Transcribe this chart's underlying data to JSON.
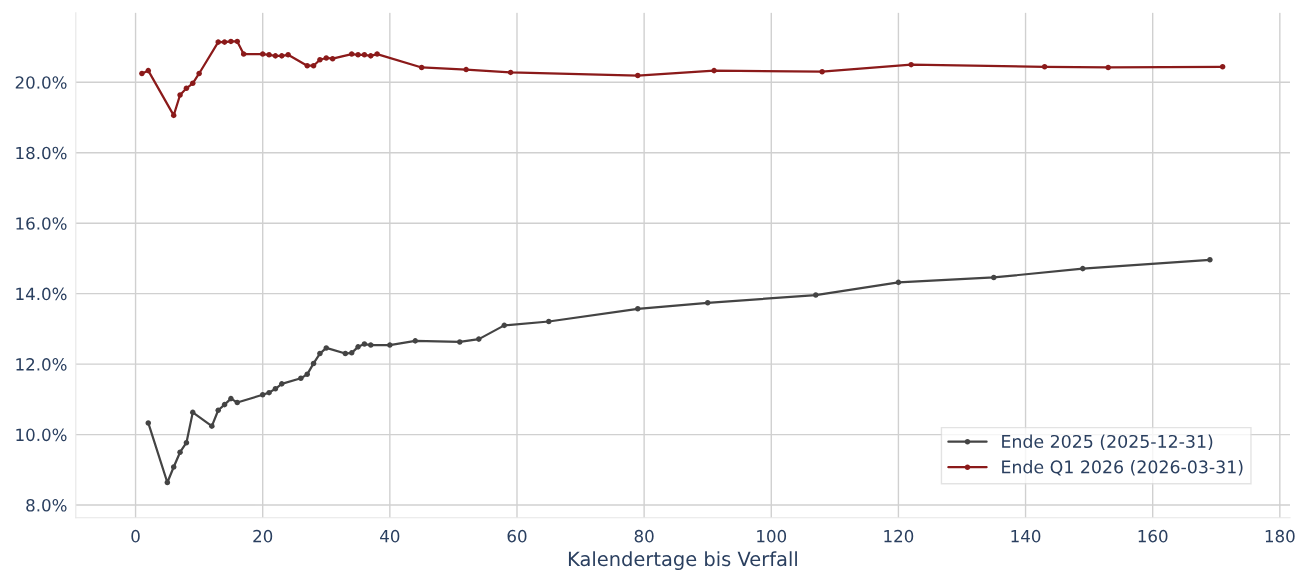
{
  "chart_data": {
    "type": "line",
    "xlabel": "Kalendertage bis Verfall",
    "xlim": [
      -9.4,
      181.6
    ],
    "xticks": [
      0,
      20,
      40,
      60,
      80,
      100,
      120,
      140,
      160,
      180
    ],
    "ylim": [
      7.64,
      21.97
    ],
    "yticks": [
      {
        "value": 8,
        "label": "8.0%"
      },
      {
        "value": 10,
        "label": "10.0%"
      },
      {
        "value": 12,
        "label": "12.0%"
      },
      {
        "value": 14,
        "label": "14.0%"
      },
      {
        "value": 16,
        "label": "16.0%"
      },
      {
        "value": 18,
        "label": "18.0%"
      },
      {
        "value": 20,
        "label": "20.0%"
      }
    ],
    "grid": true,
    "legend": "bottom right",
    "marker": "circle",
    "line_style": "solid",
    "series": [
      {
        "name": "Ende 2025 (2025-12-31)",
        "color": "#444444",
        "x": [
          2,
          5,
          6,
          7,
          8,
          9,
          12,
          13,
          14,
          15,
          16,
          20,
          21,
          22,
          23,
          26,
          27,
          28,
          29,
          30,
          33,
          34,
          35,
          36,
          37,
          40,
          44,
          51,
          54,
          58,
          65,
          79,
          90,
          107,
          120,
          135,
          149,
          169
        ],
        "values": [
          10.33,
          8.64,
          9.08,
          9.5,
          9.77,
          10.63,
          10.24,
          10.69,
          10.85,
          11.02,
          10.91,
          11.13,
          11.19,
          11.3,
          11.44,
          11.6,
          11.71,
          12.02,
          12.3,
          12.46,
          12.3,
          12.32,
          12.49,
          12.57,
          12.54,
          12.54,
          12.66,
          12.63,
          12.71,
          13.1,
          13.21,
          13.57,
          13.74,
          13.96,
          14.32,
          14.46,
          14.71,
          14.96
        ]
      },
      {
        "name": "Ende Q1 2026 (2026-03-31)",
        "color": "#8b1a1a",
        "x": [
          1,
          2,
          6,
          7,
          8,
          9,
          10,
          13,
          14,
          15,
          16,
          17,
          20,
          21,
          22,
          23,
          24,
          27,
          28,
          29,
          30,
          31,
          34,
          35,
          36,
          37,
          38,
          45,
          52,
          59,
          79,
          91,
          108,
          122,
          143,
          153,
          171
        ],
        "values": [
          20.25,
          20.33,
          19.06,
          19.64,
          19.83,
          19.97,
          20.25,
          21.14,
          21.14,
          21.16,
          21.16,
          20.8,
          20.8,
          20.78,
          20.75,
          20.75,
          20.78,
          20.47,
          20.47,
          20.64,
          20.69,
          20.67,
          20.8,
          20.78,
          20.78,
          20.75,
          20.8,
          20.42,
          20.36,
          20.28,
          20.19,
          20.33,
          20.3,
          20.5,
          20.44,
          20.42,
          20.44
        ]
      }
    ]
  }
}
